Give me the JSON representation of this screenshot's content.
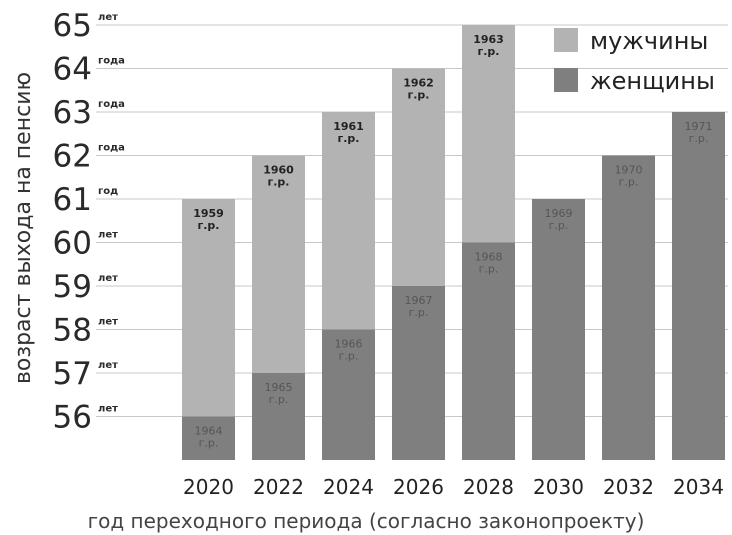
{
  "chart_data": {
    "type": "bar",
    "ylabel": "возраст выхода на пенсию",
    "xlabel": "год переходного периода (согласно законопроекту)",
    "ylim": [
      55,
      65
    ],
    "yticks": [
      {
        "value": 65,
        "unit": "лет"
      },
      {
        "value": 64,
        "unit": "года"
      },
      {
        "value": 63,
        "unit": "года"
      },
      {
        "value": 62,
        "unit": "года"
      },
      {
        "value": 61,
        "unit": "год"
      },
      {
        "value": 60,
        "unit": "лет"
      },
      {
        "value": 59,
        "unit": "лет"
      },
      {
        "value": 58,
        "unit": "лет"
      },
      {
        "value": 57,
        "unit": "лет"
      },
      {
        "value": 56,
        "unit": "лет"
      }
    ],
    "categories": [
      "2020",
      "2022",
      "2024",
      "2026",
      "2028",
      "2030",
      "2032",
      "2034"
    ],
    "legend": [
      {
        "name": "мужчины",
        "color": "#b3b3b3"
      },
      {
        "name": "женщины",
        "color": "#7f7f7f"
      }
    ],
    "series": [
      {
        "name": "мужчины",
        "color": "#b3b3b3",
        "values": [
          61,
          62,
          63,
          64,
          65,
          null,
          null,
          null
        ],
        "labels": [
          [
            "1959",
            "г.р."
          ],
          [
            "1960",
            "г.р."
          ],
          [
            "1961",
            "г.р."
          ],
          [
            "1962",
            "г.р."
          ],
          [
            "1963",
            "г.р."
          ],
          null,
          null,
          null
        ]
      },
      {
        "name": "женщины",
        "color": "#7f7f7f",
        "values": [
          56,
          57,
          58,
          59,
          60,
          61,
          62,
          63
        ],
        "labels": [
          [
            "1964",
            "г.р."
          ],
          [
            "1965",
            "г.р."
          ],
          [
            "1966",
            "г.р."
          ],
          [
            "1967",
            "г.р."
          ],
          [
            "1968",
            "г.р."
          ],
          [
            "1969",
            "г.р."
          ],
          [
            "1970",
            "г.р."
          ],
          [
            "1971",
            "г.р."
          ]
        ]
      }
    ]
  }
}
